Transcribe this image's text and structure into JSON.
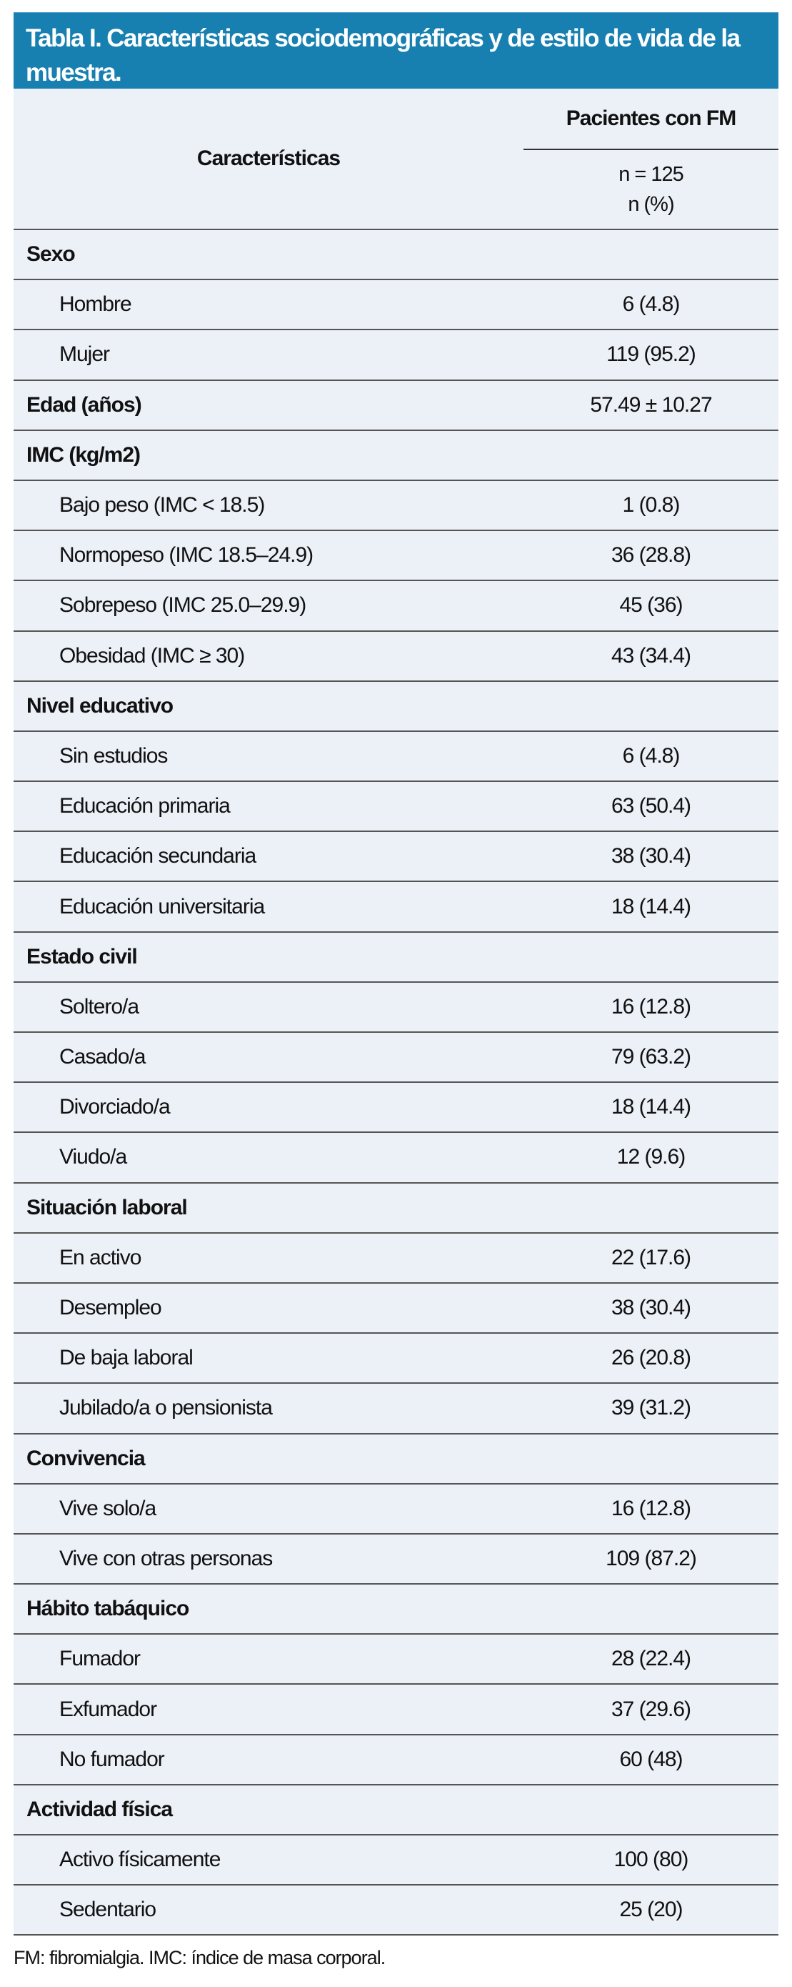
{
  "title": "Tabla I. Características sociodemográficas y de estilo de vida de la muestra.",
  "header": {
    "characteristics": "Características",
    "group": "Pacientes con FM",
    "n": "n = 125",
    "unit": "n (%)"
  },
  "rows": [
    {
      "type": "sec",
      "label": "Sexo",
      "value": ""
    },
    {
      "type": "item",
      "label": "Hombre",
      "value": "6 (4.8)"
    },
    {
      "type": "item",
      "label": "Mujer",
      "value": "119 (95.2)"
    },
    {
      "type": "sec",
      "label": "Edad (años)",
      "value": "57.49 ± 10.27"
    },
    {
      "type": "sec",
      "label": "IMC (kg/m2)",
      "value": ""
    },
    {
      "type": "item",
      "label": "Bajo peso (IMC < 18.5)",
      "value": "1 (0.8)"
    },
    {
      "type": "item",
      "label": "Normopeso (IMC 18.5–24.9)",
      "value": "36 (28.8)"
    },
    {
      "type": "item",
      "label": "Sobrepeso (IMC 25.0–29.9)",
      "value": "45 (36)"
    },
    {
      "type": "item",
      "label": "Obesidad (IMC ≥ 30)",
      "value": "43 (34.4)"
    },
    {
      "type": "sec",
      "label": "Nivel educativo",
      "value": ""
    },
    {
      "type": "item",
      "label": "Sin estudios",
      "value": "6 (4.8)"
    },
    {
      "type": "item",
      "label": "Educación primaria",
      "value": "63 (50.4)"
    },
    {
      "type": "item",
      "label": "Educación secundaria",
      "value": "38 (30.4)"
    },
    {
      "type": "item",
      "label": "Educación universitaria",
      "value": "18 (14.4)"
    },
    {
      "type": "sec",
      "label": "Estado civil",
      "value": ""
    },
    {
      "type": "item",
      "label": "Soltero/a",
      "value": "16 (12.8)"
    },
    {
      "type": "item",
      "label": "Casado/a",
      "value": "79 (63.2)"
    },
    {
      "type": "item",
      "label": "Divorciado/a",
      "value": "18 (14.4)"
    },
    {
      "type": "item",
      "label": "Viudo/a",
      "value": "12 (9.6)"
    },
    {
      "type": "sec",
      "label": "Situación laboral",
      "value": ""
    },
    {
      "type": "item",
      "label": "En activo",
      "value": "22 (17.6)"
    },
    {
      "type": "item",
      "label": "Desempleo",
      "value": "38 (30.4)"
    },
    {
      "type": "item",
      "label": "De baja laboral",
      "value": "26 (20.8)"
    },
    {
      "type": "item",
      "label": "Jubilado/a o pensionista",
      "value": "39 (31.2)"
    },
    {
      "type": "sec",
      "label": "Convivencia",
      "value": ""
    },
    {
      "type": "item",
      "label": "Vive solo/a",
      "value": "16 (12.8)"
    },
    {
      "type": "item",
      "label": "Vive con otras personas",
      "value": "109 (87.2)"
    },
    {
      "type": "sec",
      "label": "Hábito tabáquico",
      "value": ""
    },
    {
      "type": "item",
      "label": "Fumador",
      "value": "28 (22.4)"
    },
    {
      "type": "item",
      "label": "Exfumador",
      "value": "37 (29.6)"
    },
    {
      "type": "item",
      "label": "No fumador",
      "value": "60 (48)"
    },
    {
      "type": "sec",
      "label": "Actividad física",
      "value": ""
    },
    {
      "type": "item",
      "label": "Activo físicamente",
      "value": "100 (80)"
    },
    {
      "type": "item",
      "label": "Sedentario",
      "value": "25 (20)"
    }
  ],
  "footnote": "FM: fibromialgia. IMC: índice de masa corporal.",
  "colors": {
    "header_bg": "#1780b0",
    "table_bg": "#ecf0f7"
  }
}
